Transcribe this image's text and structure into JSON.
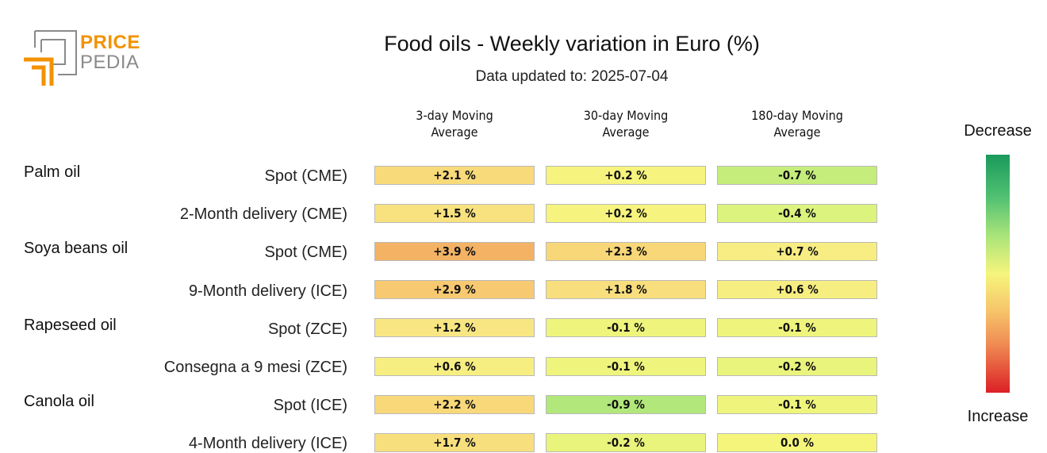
{
  "logo": {
    "line1": "PRICE",
    "line2": "PEDIA"
  },
  "title": "Food oils - Weekly variation in Euro (%)",
  "subtitle": "Data updated to: 2025-07-04",
  "columns": [
    {
      "line1": "3-day Moving",
      "line2": "Average"
    },
    {
      "line1": "30-day Moving",
      "line2": "Average"
    },
    {
      "line1": "180-day Moving",
      "line2": "Average"
    }
  ],
  "groups": [
    "Palm oil",
    "Soya beans oil",
    "Rapeseed oil",
    "Canola oil"
  ],
  "rows": [
    {
      "label": "Spot (CME)",
      "values": [
        "+2.1 %",
        "+0.2 %",
        "-0.7 %"
      ]
    },
    {
      "label": "2-Month delivery (CME)",
      "values": [
        "+1.5 %",
        "+0.2 %",
        "-0.4 %"
      ]
    },
    {
      "label": "Spot (CME)",
      "values": [
        "+3.9 %",
        "+2.3 %",
        "+0.7 %"
      ]
    },
    {
      "label": "9-Month delivery (ICE)",
      "values": [
        "+2.9 %",
        "+1.8 %",
        "+0.6 %"
      ]
    },
    {
      "label": "Spot (ZCE)",
      "values": [
        "+1.2 %",
        "-0.1 %",
        "-0.1 %"
      ]
    },
    {
      "label": "Consegna a 9 mesi (ZCE)",
      "values": [
        "+0.6 %",
        "-0.1 %",
        "-0.2 %"
      ]
    },
    {
      "label": "Spot (ICE)",
      "values": [
        "+2.2 %",
        "-0.9 %",
        "-0.1 %"
      ]
    },
    {
      "label": "4-Month delivery (ICE)",
      "values": [
        "+1.7 %",
        "-0.2 %",
        "0.0 %"
      ]
    }
  ],
  "legend": {
    "top": "Decrease",
    "bottom": "Increase"
  },
  "colors": {
    "brand_orange": "#f39200",
    "brand_gray": "#8a8a8a",
    "scale_decrease": "#1a9a5c",
    "scale_neutral": "#f5f57c",
    "scale_increase": "#dc1f26"
  },
  "chart_data": {
    "type": "heatmap",
    "title": "Food oils - Weekly variation in Euro (%)",
    "subtitle": "Data updated to: 2025-07-04",
    "x": [
      "3-day Moving Average",
      "30-day Moving Average",
      "180-day Moving Average"
    ],
    "y": [
      "Palm oil - Spot (CME)",
      "Palm oil - 2-Month delivery (CME)",
      "Soya beans oil - Spot (CME)",
      "Soya beans oil - 9-Month delivery (ICE)",
      "Rapeseed oil - Spot (ZCE)",
      "Rapeseed oil - Consegna a 9 mesi (ZCE)",
      "Canola oil - Spot (ICE)",
      "Canola oil - 4-Month delivery (ICE)"
    ],
    "values": [
      [
        2.1,
        0.2,
        -0.7
      ],
      [
        1.5,
        0.2,
        -0.4
      ],
      [
        3.9,
        2.3,
        0.7
      ],
      [
        2.9,
        1.8,
        0.6
      ],
      [
        1.2,
        -0.1,
        -0.1
      ],
      [
        0.6,
        -0.1,
        -0.2
      ],
      [
        2.2,
        -0.9,
        -0.1
      ],
      [
        1.7,
        -0.2,
        0.0
      ]
    ],
    "unit": "%",
    "color_scale": {
      "top_label": "Decrease",
      "bottom_label": "Increase"
    }
  }
}
